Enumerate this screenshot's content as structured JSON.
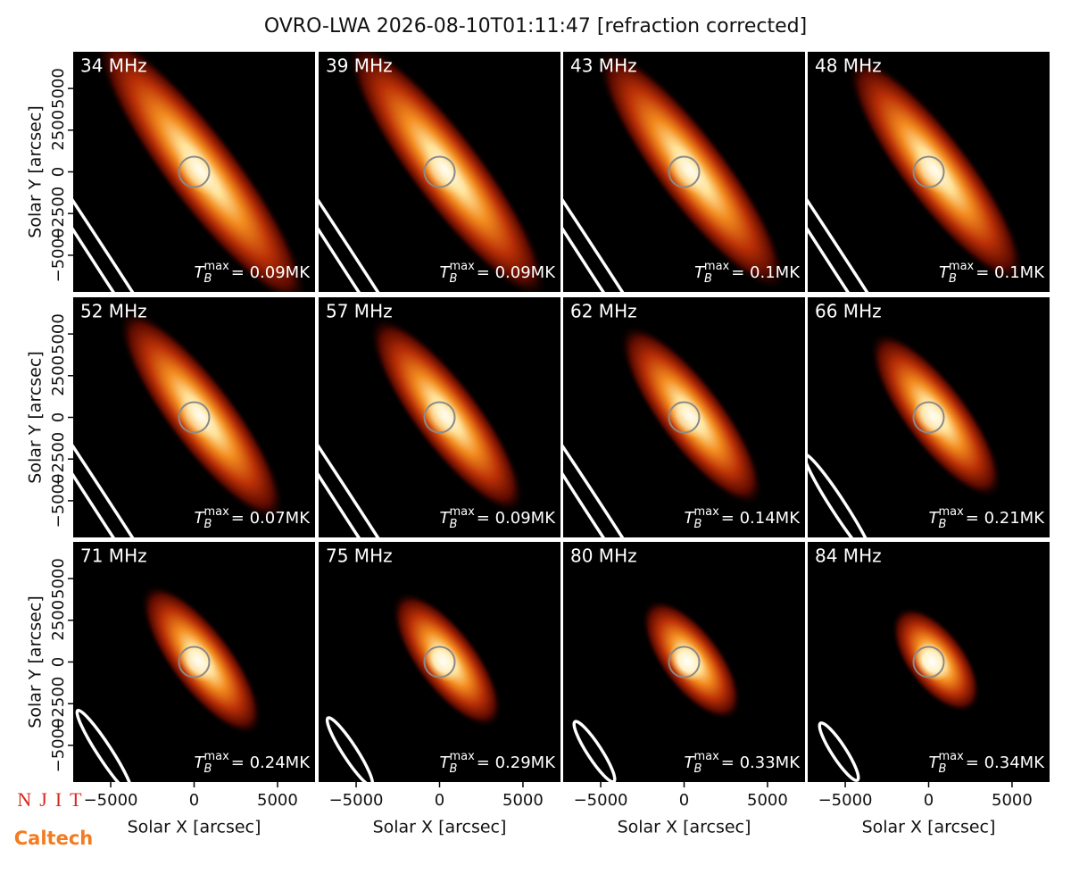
{
  "chart_data": {
    "type": "image_grid",
    "title": "OVRO-LWA 2026-08-10T01:11:47 [refraction corrected]",
    "xlabel": "Solar X [arcsec]",
    "ylabel": "Solar Y [arcsec]",
    "categories": [
      "34 MHz",
      "39 MHz",
      "43 MHz",
      "48 MHz",
      "52 MHz",
      "57 MHz",
      "62 MHz",
      "66 MHz",
      "71 MHz",
      "75 MHz",
      "80 MHz",
      "84 MHz"
    ],
    "values": [
      0.09,
      0.09,
      0.1,
      0.1,
      0.07,
      0.09,
      0.14,
      0.21,
      0.24,
      0.29,
      0.33,
      0.34
    ],
    "value_labels": [
      "= 0.09MK",
      "= 0.09MK",
      "= 0.1MK",
      "= 0.1MK",
      "= 0.07MK",
      "= 0.09MK",
      "= 0.14MK",
      "= 0.21MK",
      "= 0.24MK",
      "= 0.29MK",
      "= 0.33MK",
      "= 0.34MK"
    ],
    "value_label_symbol": {
      "base": "T",
      "sub": "B",
      "sup": "max"
    },
    "xlim": [
      -7250,
      7250
    ],
    "ylim": [
      -7200,
      7200
    ],
    "xticks": [
      {
        "value": -5000,
        "label": "−5000"
      },
      0,
      5000
    ],
    "yticks": [
      {
        "value": -5000,
        "label": "−5000"
      },
      {
        "value": -2500,
        "label": "−2500"
      },
      0,
      2500,
      5000
    ],
    "grid": false,
    "logos": {
      "njit": "NJIT",
      "caltech": "Caltech"
    }
  }
}
